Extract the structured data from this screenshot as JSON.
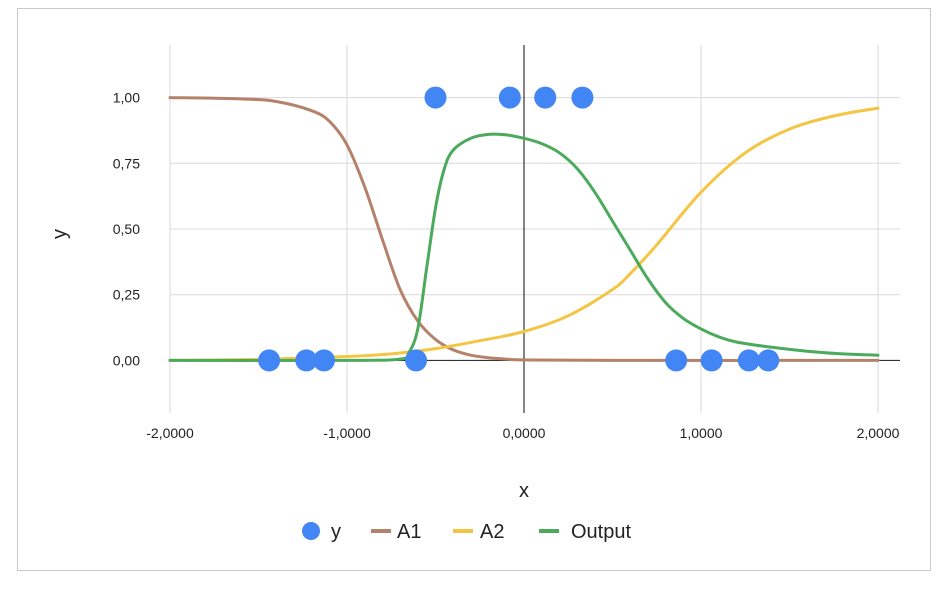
{
  "chart_data": {
    "type": "scatter+line",
    "title": "",
    "xlabel": "x",
    "ylabel": "y",
    "xlim": [
      -2,
      2
    ],
    "ylim": [
      -0.2,
      1.2
    ],
    "x_ticks": [
      -2,
      -1,
      0,
      1,
      2
    ],
    "x_tick_labels": [
      "-2,0000",
      "-1,0000",
      "0,0000",
      "1,0000",
      "2,0000"
    ],
    "y_ticks": [
      0,
      0.25,
      0.5,
      0.75,
      1
    ],
    "y_tick_labels": [
      "0,00",
      "0,25",
      "0,50",
      "0,75",
      "1,00"
    ],
    "grid": true,
    "legend_position": "bottom",
    "legend": [
      "y",
      "A1",
      "A2",
      "Output"
    ],
    "colors": {
      "y": "#4285f4",
      "A1": "#b4826a",
      "A2": "#f4c542",
      "Output": "#4caa5c",
      "grid": "#d9d9d9",
      "zero_axis": "#333333"
    },
    "series": [
      {
        "name": "y",
        "kind": "scatter",
        "points": [
          {
            "x": -1.44,
            "y": 0
          },
          {
            "x": -1.23,
            "y": 0
          },
          {
            "x": -1.13,
            "y": 0
          },
          {
            "x": -0.61,
            "y": 0
          },
          {
            "x": -0.5,
            "y": 1
          },
          {
            "x": -0.08,
            "y": 1
          },
          {
            "x": 0.12,
            "y": 1
          },
          {
            "x": 0.33,
            "y": 1
          },
          {
            "x": 0.86,
            "y": 0
          },
          {
            "x": 1.06,
            "y": 0
          },
          {
            "x": 1.27,
            "y": 0
          },
          {
            "x": 1.38,
            "y": 0
          }
        ]
      },
      {
        "name": "A1",
        "kind": "line",
        "points": [
          {
            "x": -2,
            "y": 1
          },
          {
            "x": -1.6,
            "y": 0.995
          },
          {
            "x": -1.4,
            "y": 0.985
          },
          {
            "x": -1.2,
            "y": 0.95
          },
          {
            "x": -1.1,
            "y": 0.91
          },
          {
            "x": -1.0,
            "y": 0.82
          },
          {
            "x": -0.9,
            "y": 0.66
          },
          {
            "x": -0.8,
            "y": 0.46
          },
          {
            "x": -0.7,
            "y": 0.27
          },
          {
            "x": -0.6,
            "y": 0.15
          },
          {
            "x": -0.5,
            "y": 0.08
          },
          {
            "x": -0.4,
            "y": 0.04
          },
          {
            "x": -0.3,
            "y": 0.02
          },
          {
            "x": -0.2,
            "y": 0.01
          },
          {
            "x": -0.1,
            "y": 0.005
          },
          {
            "x": 0,
            "y": 0.002
          },
          {
            "x": 0.5,
            "y": 0.0
          },
          {
            "x": 2,
            "y": 0.0
          }
        ]
      },
      {
        "name": "A2",
        "kind": "line",
        "points": [
          {
            "x": -2,
            "y": 0.0
          },
          {
            "x": -1.5,
            "y": 0.004
          },
          {
            "x": -1.0,
            "y": 0.015
          },
          {
            "x": -0.75,
            "y": 0.025
          },
          {
            "x": -0.5,
            "y": 0.045
          },
          {
            "x": -0.25,
            "y": 0.075
          },
          {
            "x": 0,
            "y": 0.11
          },
          {
            "x": 0.25,
            "y": 0.17
          },
          {
            "x": 0.5,
            "y": 0.27
          },
          {
            "x": 0.6,
            "y": 0.33
          },
          {
            "x": 0.75,
            "y": 0.44
          },
          {
            "x": 1.0,
            "y": 0.64
          },
          {
            "x": 1.25,
            "y": 0.79
          },
          {
            "x": 1.5,
            "y": 0.88
          },
          {
            "x": 1.75,
            "y": 0.93
          },
          {
            "x": 2,
            "y": 0.96
          }
        ]
      },
      {
        "name": "Output",
        "kind": "line",
        "points": [
          {
            "x": -2,
            "y": 0.0
          },
          {
            "x": -1.0,
            "y": 0.0
          },
          {
            "x": -0.7,
            "y": 0.005
          },
          {
            "x": -0.65,
            "y": 0.03
          },
          {
            "x": -0.6,
            "y": 0.12
          },
          {
            "x": -0.55,
            "y": 0.35
          },
          {
            "x": -0.5,
            "y": 0.58
          },
          {
            "x": -0.45,
            "y": 0.73
          },
          {
            "x": -0.4,
            "y": 0.8
          },
          {
            "x": -0.3,
            "y": 0.845
          },
          {
            "x": -0.2,
            "y": 0.86
          },
          {
            "x": -0.1,
            "y": 0.858
          },
          {
            "x": 0,
            "y": 0.845
          },
          {
            "x": 0.1,
            "y": 0.825
          },
          {
            "x": 0.2,
            "y": 0.79
          },
          {
            "x": 0.3,
            "y": 0.73
          },
          {
            "x": 0.4,
            "y": 0.64
          },
          {
            "x": 0.5,
            "y": 0.53
          },
          {
            "x": 0.6,
            "y": 0.42
          },
          {
            "x": 0.7,
            "y": 0.31
          },
          {
            "x": 0.8,
            "y": 0.22
          },
          {
            "x": 0.9,
            "y": 0.16
          },
          {
            "x": 1.0,
            "y": 0.12
          },
          {
            "x": 1.1,
            "y": 0.09
          },
          {
            "x": 1.2,
            "y": 0.07
          },
          {
            "x": 1.4,
            "y": 0.05
          },
          {
            "x": 1.6,
            "y": 0.035
          },
          {
            "x": 1.8,
            "y": 0.025
          },
          {
            "x": 2,
            "y": 0.02
          }
        ]
      }
    ]
  }
}
